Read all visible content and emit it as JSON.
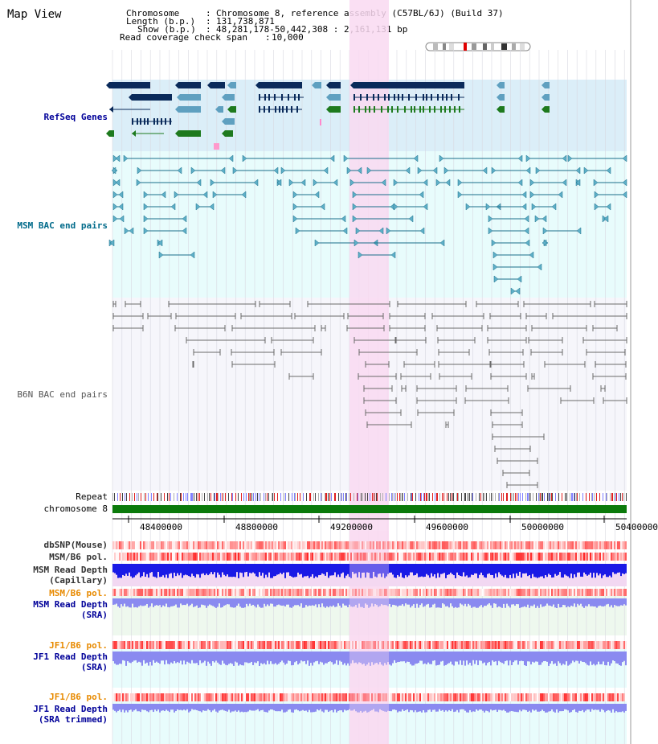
{
  "view": {
    "title": "Map View",
    "chromosome_label": "Chromosome",
    "chromosome_value": "Chromosome 8, reference assembly (C57BL/6J) (Build 37)",
    "length_label": "Length (b.p.)",
    "length_value": "131,738,871",
    "show_label": "Show (b.p.)",
    "show_value": "48,281,178-50,442,308 : 2,161,131 bp",
    "coverage_label": "Read coverage check span",
    "coverage_value": "10,000"
  },
  "tracks": {
    "refseq": "RefSeq Genes",
    "msm_bac": "MSM BAC end pairs",
    "b6n_bac": "B6N BAC end pairs",
    "repeat": "Repeat",
    "chromosome": "chromosome 8",
    "dbsnp": "dbSNP(Mouse)",
    "msm_b6_pol": "MSM/B6 pol.",
    "msm_depth_cap_1": "MSM Read Depth",
    "msm_depth_cap_2": "(Capillary)",
    "msm_b6_pol2": "MSM/B6 pol.",
    "msm_depth_sra_1": "MSM Read Depth",
    "msm_depth_sra_2": "(SRA)",
    "jf1_b6_pol": "JF1/B6 pol.",
    "jf1_depth_sra_1": "JF1 Read Depth",
    "jf1_depth_sra_2": "(SRA)",
    "jf1_b6_pol2": "JF1/B6 pol.",
    "jf1_depth_trim_1": "JF1 Read Depth",
    "jf1_depth_trim_2": "(SRA trimmed)"
  },
  "axis": {
    "ticks": [
      "48400000",
      "48800000",
      "49200000",
      "49600000",
      "50000000",
      "50400000"
    ]
  },
  "colors": {
    "refseq_bg": "#dbeef8",
    "msm_bg": "#e8fcfc",
    "b6n_bg": "#f6f6fb",
    "highlight": "#f9d9f1",
    "gene": "#0a2a5a",
    "gene_green": "#1e7a1e",
    "msm_line": "#1a6e8a",
    "b6n_line": "#6a6a6a",
    "chrom": "#0b7a0b",
    "snp": "#ff9090",
    "depth_cap": "#1a1ae6",
    "depth_sra": "#8a8af0",
    "label_blue": "#000099",
    "label_orange": "#e88a00"
  }
}
